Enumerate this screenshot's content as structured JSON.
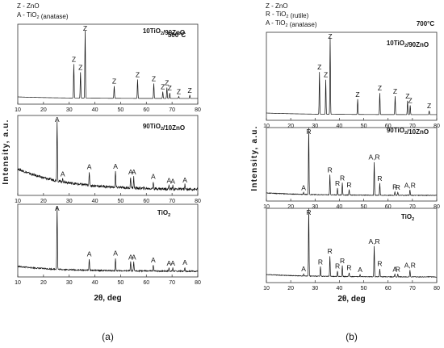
{
  "figure": {
    "left": {
      "caption": "(a)",
      "legend": [
        {
          "symbol": "Z",
          "name": "ZnO"
        },
        {
          "symbol": "A",
          "name": "TiO2 (anatase)"
        }
      ],
      "temperature": "500°C",
      "ylabel": "Intensity, a.u.",
      "xlabel": "2θ, deg",
      "chart_data": {
        "type": "line",
        "xlim": [
          10,
          80
        ],
        "xticks": [
          10,
          20,
          30,
          40,
          50,
          60,
          70,
          80
        ],
        "series": [
          {
            "name": "10TiO2/90ZnO",
            "peaks": [
              {
                "x": 31.8,
                "h": 0.5,
                "label": "Z"
              },
              {
                "x": 34.4,
                "h": 0.38,
                "label": "Z"
              },
              {
                "x": 36.2,
                "h": 1.0,
                "label": "Z"
              },
              {
                "x": 47.5,
                "h": 0.18,
                "label": "Z"
              },
              {
                "x": 56.6,
                "h": 0.28,
                "label": "Z"
              },
              {
                "x": 62.9,
                "h": 0.22,
                "label": "Z"
              },
              {
                "x": 66.4,
                "h": 0.1,
                "label": "Z"
              },
              {
                "x": 68.0,
                "h": 0.16,
                "label": "Z"
              },
              {
                "x": 69.1,
                "h": 0.08,
                "label": "Z"
              },
              {
                "x": 72.6,
                "h": 0.03,
                "label": "Z"
              },
              {
                "x": 76.9,
                "h": 0.05,
                "label": "Z"
              }
            ]
          },
          {
            "name": "90TiO2/10ZnO",
            "peaks": [
              {
                "x": 25.3,
                "h": 1.0,
                "label": "A"
              },
              {
                "x": 27.5,
                "h": 0.05,
                "label": "A"
              },
              {
                "x": 37.8,
                "h": 0.22,
                "label": "A"
              },
              {
                "x": 48.0,
                "h": 0.26,
                "label": "A"
              },
              {
                "x": 53.9,
                "h": 0.18,
                "label": "A"
              },
              {
                "x": 55.1,
                "h": 0.18,
                "label": "A"
              },
              {
                "x": 62.7,
                "h": 0.12,
                "label": "A"
              },
              {
                "x": 68.8,
                "h": 0.06,
                "label": "A"
              },
              {
                "x": 70.3,
                "h": 0.05,
                "label": "A"
              },
              {
                "x": 75.0,
                "h": 0.07,
                "label": "A"
              }
            ]
          },
          {
            "name": "TiO2",
            "peaks": [
              {
                "x": 25.3,
                "h": 1.0,
                "label": "A"
              },
              {
                "x": 37.8,
                "h": 0.18,
                "label": "A"
              },
              {
                "x": 48.0,
                "h": 0.2,
                "label": "A"
              },
              {
                "x": 53.9,
                "h": 0.14,
                "label": "A"
              },
              {
                "x": 55.1,
                "h": 0.14,
                "label": "A"
              },
              {
                "x": 62.7,
                "h": 0.1,
                "label": "A"
              },
              {
                "x": 68.8,
                "h": 0.05,
                "label": "A"
              },
              {
                "x": 70.3,
                "h": 0.05,
                "label": "A"
              },
              {
                "x": 75.0,
                "h": 0.06,
                "label": "A"
              }
            ]
          }
        ]
      }
    },
    "right": {
      "caption": "(b)",
      "legend": [
        {
          "symbol": "Z",
          "name": "ZnO"
        },
        {
          "symbol": "R",
          "name": "TiO2 (rutile)"
        },
        {
          "symbol": "A",
          "name": "TiO2 (anatase)"
        }
      ],
      "temperature": "700°C",
      "ylabel": "Intensity, a.u.",
      "xlabel": "2θ, deg",
      "chart_data": {
        "type": "line",
        "xlim": [
          10,
          80
        ],
        "xticks": [
          10,
          20,
          30,
          40,
          50,
          60,
          70,
          80
        ],
        "series": [
          {
            "name": "10TiO2/90ZnO",
            "peaks": [
              {
                "x": 31.8,
                "h": 0.55,
                "label": "Z"
              },
              {
                "x": 34.4,
                "h": 0.45,
                "label": "Z"
              },
              {
                "x": 36.2,
                "h": 1.0,
                "label": "Z"
              },
              {
                "x": 47.5,
                "h": 0.2,
                "label": "Z"
              },
              {
                "x": 56.6,
                "h": 0.28,
                "label": "Z"
              },
              {
                "x": 62.9,
                "h": 0.24,
                "label": "Z"
              },
              {
                "x": 68.0,
                "h": 0.18,
                "label": "Z"
              },
              {
                "x": 69.1,
                "h": 0.12,
                "label": "Z"
              },
              {
                "x": 76.9,
                "h": 0.05,
                "label": "Z"
              }
            ]
          },
          {
            "name": "90TiO2/10ZnO",
            "peaks": [
              {
                "x": 25.3,
                "h": 0.03,
                "label": "A"
              },
              {
                "x": 27.4,
                "h": 1.0,
                "label": "R"
              },
              {
                "x": 36.1,
                "h": 0.3,
                "label": "R"
              },
              {
                "x": 39.2,
                "h": 0.1,
                "label": "R"
              },
              {
                "x": 41.2,
                "h": 0.18,
                "label": "R"
              },
              {
                "x": 44.0,
                "h": 0.08,
                "label": "R"
              },
              {
                "x": 54.3,
                "h": 0.5,
                "label": "A,R"
              },
              {
                "x": 56.6,
                "h": 0.18,
                "label": "R"
              },
              {
                "x": 62.8,
                "h": 0.05,
                "label": "R"
              },
              {
                "x": 64.0,
                "h": 0.05,
                "label": "R"
              },
              {
                "x": 69.0,
                "h": 0.08,
                "label": "A,R"
              }
            ]
          },
          {
            "name": "TiO2",
            "peaks": [
              {
                "x": 25.3,
                "h": 0.03,
                "label": "A"
              },
              {
                "x": 27.4,
                "h": 1.0,
                "label": "R"
              },
              {
                "x": 32.2,
                "h": 0.14,
                "label": "R"
              },
              {
                "x": 36.1,
                "h": 0.3,
                "label": "R"
              },
              {
                "x": 39.2,
                "h": 0.08,
                "label": "R"
              },
              {
                "x": 41.2,
                "h": 0.16,
                "label": "R"
              },
              {
                "x": 44.0,
                "h": 0.06,
                "label": "R"
              },
              {
                "x": 48.5,
                "h": 0.03,
                "label": "A"
              },
              {
                "x": 54.3,
                "h": 0.45,
                "label": "A,R"
              },
              {
                "x": 56.6,
                "h": 0.12,
                "label": "R"
              },
              {
                "x": 62.8,
                "h": 0.04,
                "label": "A"
              },
              {
                "x": 64.0,
                "h": 0.04,
                "label": "R"
              },
              {
                "x": 69.0,
                "h": 0.1,
                "label": "A,R"
              }
            ]
          }
        ]
      }
    }
  }
}
